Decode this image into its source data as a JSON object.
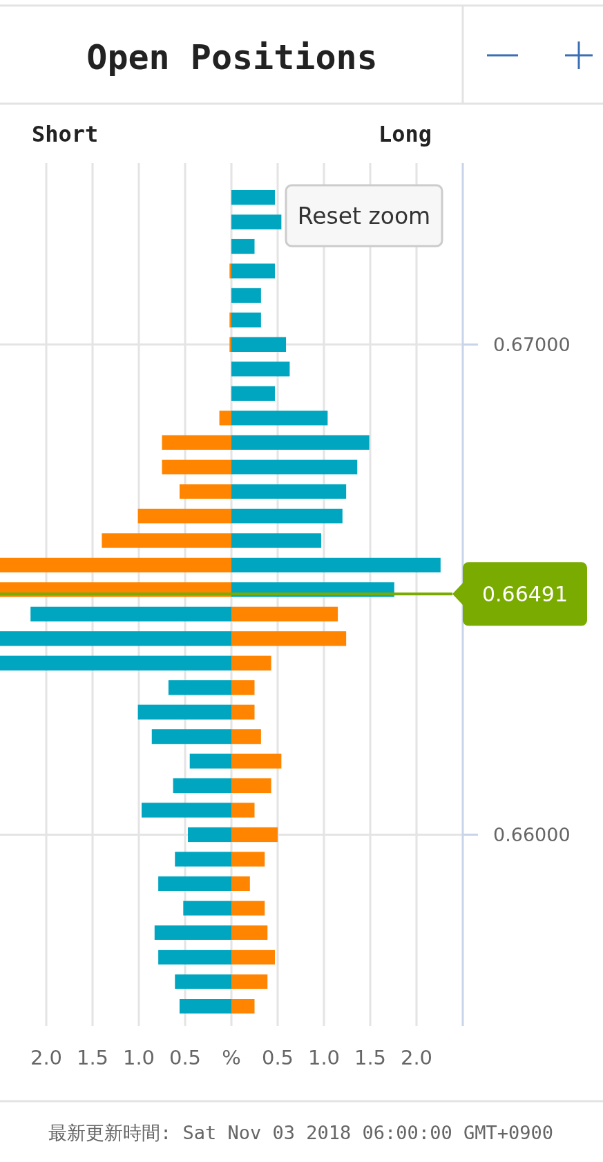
{
  "chart_data": {
    "type": "bar",
    "orientation": "horizontal",
    "title": "Open Positions",
    "stacked": true,
    "annotations": [
      "Reset zoom",
      "Short",
      "Long",
      "最新更新時間: Sat Nov 03 2018 06:00:00 GMT+0900"
    ],
    "x": [
      0.673,
      0.6725,
      0.672,
      0.6715,
      0.671,
      0.6705,
      0.67,
      0.6695,
      0.669,
      0.6685,
      0.668,
      0.6675,
      0.667,
      0.6665,
      0.666,
      0.6655,
      0.665,
      0.6645,
      0.664,
      0.6635,
      0.663,
      0.6625,
      0.662,
      0.6615,
      0.661,
      0.6605,
      0.66,
      0.6595,
      0.659,
      0.6585,
      0.658,
      0.6575,
      0.657,
      0.6565
    ],
    "series": [
      {
        "values": [
          null,
          null,
          null,
          -0.02,
          null,
          -0.02,
          -0.02,
          null,
          null,
          -0.13,
          -0.75,
          -0.75,
          -0.56,
          -1.01,
          -1.4,
          -2.5,
          -2.5,
          -2.17,
          -2.5,
          -2.5,
          -0.68,
          -1.01,
          -0.86,
          -0.45,
          -0.63,
          -0.97,
          -0.47,
          -0.61,
          -0.79,
          -0.52,
          -0.83,
          -0.79,
          -0.61,
          -0.56
        ],
        "colors": [
          null,
          null,
          null,
          "#ff8500",
          null,
          "#ff8500",
          "#ff8500",
          null,
          null,
          "#ff8500",
          "#ff8500",
          "#ff8500",
          "#ff8500",
          "#ff8500",
          "#ff8500",
          "#ff8500",
          "#ff8500",
          "#00a6c0",
          "#00a6c0",
          "#00a6c0",
          "#00a6c0",
          "#00a6c0",
          "#00a6c0",
          "#00a6c0",
          "#00a6c0",
          "#00a6c0",
          "#00a6c0",
          "#00a6c0",
          "#00a6c0",
          "#00a6c0",
          "#00a6c0",
          "#00a6c0",
          "#00a6c0",
          "#00a6c0"
        ]
      },
      {
        "values": [
          0.47,
          0.54,
          0.25,
          0.47,
          0.32,
          0.32,
          0.59,
          0.63,
          0.47,
          1.04,
          1.49,
          1.36,
          1.24,
          1.2,
          0.97,
          2.26,
          1.76,
          1.15,
          1.24,
          0.43,
          0.25,
          0.25,
          0.32,
          0.54,
          0.43,
          0.25,
          0.5,
          0.36,
          0.2,
          0.36,
          0.39,
          0.47,
          0.39,
          0.25
        ],
        "colors": [
          "#00a6c0",
          "#00a6c0",
          "#00a6c0",
          "#00a6c0",
          "#00a6c0",
          "#00a6c0",
          "#00a6c0",
          "#00a6c0",
          "#00a6c0",
          "#00a6c0",
          "#00a6c0",
          "#00a6c0",
          "#00a6c0",
          "#00a6c0",
          "#00a6c0",
          "#00a6c0",
          "#00a6c0",
          "#ff8500",
          "#ff8500",
          "#ff8500",
          "#ff8500",
          "#ff8500",
          "#ff8500",
          "#ff8500",
          "#ff8500",
          "#ff8500",
          "#ff8500",
          "#ff8500",
          "#ff8500",
          "#ff8500",
          "#ff8500",
          "#ff8500",
          "#ff8500",
          "#ff8500"
        ]
      }
    ],
    "xlim": [
      -2.5,
      2.5
    ],
    "xticks": [
      {
        "value": -2,
        "label": "2.0"
      },
      {
        "value": -1.5,
        "label": "1.5"
      },
      {
        "value": -1,
        "label": "1.0"
      },
      {
        "value": -0.5,
        "label": "0.5"
      },
      {
        "value": 0,
        "label": "%"
      },
      {
        "value": 0.5,
        "label": "0.5"
      },
      {
        "value": 1,
        "label": "1.0"
      },
      {
        "value": 1.5,
        "label": "1.5"
      },
      {
        "value": 2,
        "label": "2.0"
      }
    ],
    "ylim": [
      0.6561,
      0.6737
    ],
    "yticks": [
      {
        "value": 0.67,
        "label": "0.67000"
      },
      {
        "value": 0.66,
        "label": "0.66000"
      }
    ],
    "grid": true,
    "ref_lines": [
      {
        "axis": "y",
        "value": 0.66491,
        "label": "0.66491",
        "color": "#7aab00"
      }
    ]
  }
}
